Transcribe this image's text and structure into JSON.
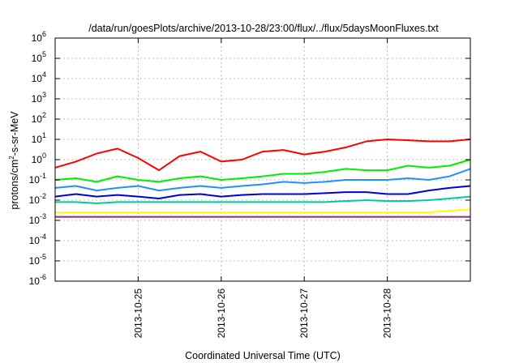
{
  "chart_data": {
    "type": "line",
    "title": "/data/run/goesPlots/archive/2013-10-28/23:00/flux/../flux/5daysMoonFluxes.txt",
    "xlabel": "Coordinated Universal Time (UTC)",
    "ylabel_parts": [
      "protons/cm",
      "2",
      "-s-sr-MeV"
    ],
    "yscale": "log",
    "ylim": [
      1e-06,
      1000000
    ],
    "xlim": [
      "2013-10-24 00:00",
      "2013-10-29 00:00"
    ],
    "x_ticks": [
      {
        "label": "2013-10-25",
        "value": "2013-10-25 00:00"
      },
      {
        "label": "2013-10-26",
        "value": "2013-10-26 00:00"
      },
      {
        "label": "2013-10-27",
        "value": "2013-10-27 00:00"
      },
      {
        "label": "2013-10-28",
        "value": "2013-10-28 00:00"
      }
    ],
    "y_ticks": [
      {
        "mantissa": "10",
        "exp": "-6",
        "value": 1e-06
      },
      {
        "mantissa": "10",
        "exp": "-5",
        "value": 1e-05
      },
      {
        "mantissa": "10",
        "exp": "-4",
        "value": 0.0001
      },
      {
        "mantissa": "10",
        "exp": "-3",
        "value": 0.001
      },
      {
        "mantissa": "10",
        "exp": "-2",
        "value": 0.01
      },
      {
        "mantissa": "10",
        "exp": "-1",
        "value": 0.1
      },
      {
        "mantissa": "10",
        "exp": "0",
        "value": 1
      },
      {
        "mantissa": "10",
        "exp": "1",
        "value": 10
      },
      {
        "mantissa": "10",
        "exp": "2",
        "value": 100
      },
      {
        "mantissa": "10",
        "exp": "3",
        "value": 1000
      },
      {
        "mantissa": "10",
        "exp": "4",
        "value": 10000
      },
      {
        "mantissa": "10",
        "exp": "5",
        "value": 100000
      },
      {
        "mantissa": "10",
        "exp": "6",
        "value": 1000000
      }
    ],
    "grid": true,
    "legend": "none",
    "series": [
      {
        "color": "#ff0000",
        "x": [
          "2013-10-24 00:00",
          "2013-10-24 06:00",
          "2013-10-24 12:00",
          "2013-10-24 18:00",
          "2013-10-25 00:00",
          "2013-10-25 06:00",
          "2013-10-25 12:00",
          "2013-10-25 18:00",
          "2013-10-26 00:00",
          "2013-10-26 06:00",
          "2013-10-26 12:00",
          "2013-10-26 18:00",
          "2013-10-27 00:00",
          "2013-10-27 06:00",
          "2013-10-27 12:00",
          "2013-10-27 18:00",
          "2013-10-28 00:00",
          "2013-10-28 06:00",
          "2013-10-28 12:00",
          "2013-10-28 18:00",
          "2013-10-29 00:00"
        ],
        "y": [
          0.4,
          0.8,
          2,
          3.5,
          1.2,
          0.3,
          1.5,
          2.5,
          0.8,
          1,
          2.5,
          3,
          1.8,
          2.5,
          4,
          8,
          10,
          9,
          8,
          8,
          10
        ]
      },
      {
        "color": "#00ee00",
        "x": [
          "2013-10-24 00:00",
          "2013-10-24 06:00",
          "2013-10-24 12:00",
          "2013-10-24 18:00",
          "2013-10-25 00:00",
          "2013-10-25 06:00",
          "2013-10-25 12:00",
          "2013-10-25 18:00",
          "2013-10-26 00:00",
          "2013-10-26 06:00",
          "2013-10-26 12:00",
          "2013-10-26 18:00",
          "2013-10-27 00:00",
          "2013-10-27 06:00",
          "2013-10-27 12:00",
          "2013-10-27 18:00",
          "2013-10-28 00:00",
          "2013-10-28 06:00",
          "2013-10-28 12:00",
          "2013-10-28 18:00",
          "2013-10-29 00:00"
        ],
        "y": [
          0.1,
          0.12,
          0.08,
          0.15,
          0.1,
          0.08,
          0.12,
          0.15,
          0.1,
          0.12,
          0.15,
          0.2,
          0.2,
          0.25,
          0.35,
          0.3,
          0.3,
          0.5,
          0.4,
          0.5,
          1
        ]
      },
      {
        "color": "#1e90ff",
        "x": [
          "2013-10-24 00:00",
          "2013-10-24 06:00",
          "2013-10-24 12:00",
          "2013-10-24 18:00",
          "2013-10-25 00:00",
          "2013-10-25 06:00",
          "2013-10-25 12:00",
          "2013-10-25 18:00",
          "2013-10-26 00:00",
          "2013-10-26 06:00",
          "2013-10-26 12:00",
          "2013-10-26 18:00",
          "2013-10-27 00:00",
          "2013-10-27 06:00",
          "2013-10-27 12:00",
          "2013-10-27 18:00",
          "2013-10-28 00:00",
          "2013-10-28 06:00",
          "2013-10-28 12:00",
          "2013-10-28 18:00",
          "2013-10-29 00:00"
        ],
        "y": [
          0.04,
          0.05,
          0.03,
          0.04,
          0.05,
          0.03,
          0.04,
          0.05,
          0.04,
          0.05,
          0.06,
          0.08,
          0.07,
          0.08,
          0.1,
          0.1,
          0.1,
          0.12,
          0.1,
          0.15,
          0.35
        ]
      },
      {
        "color": "#0000dd",
        "x": [
          "2013-10-24 00:00",
          "2013-10-24 06:00",
          "2013-10-24 12:00",
          "2013-10-24 18:00",
          "2013-10-25 00:00",
          "2013-10-25 06:00",
          "2013-10-25 12:00",
          "2013-10-25 18:00",
          "2013-10-26 00:00",
          "2013-10-26 06:00",
          "2013-10-26 12:00",
          "2013-10-26 18:00",
          "2013-10-27 00:00",
          "2013-10-27 06:00",
          "2013-10-27 12:00",
          "2013-10-27 18:00",
          "2013-10-28 00:00",
          "2013-10-28 06:00",
          "2013-10-28 12:00",
          "2013-10-28 18:00",
          "2013-10-29 00:00"
        ],
        "y": [
          0.015,
          0.02,
          0.015,
          0.018,
          0.015,
          0.012,
          0.018,
          0.02,
          0.015,
          0.018,
          0.02,
          0.02,
          0.02,
          0.022,
          0.025,
          0.025,
          0.02,
          0.02,
          0.03,
          0.04,
          0.05
        ]
      },
      {
        "color": "#00c8a0",
        "x": [
          "2013-10-24 00:00",
          "2013-10-24 06:00",
          "2013-10-24 12:00",
          "2013-10-24 18:00",
          "2013-10-25 00:00",
          "2013-10-25 06:00",
          "2013-10-25 12:00",
          "2013-10-25 18:00",
          "2013-10-26 00:00",
          "2013-10-26 06:00",
          "2013-10-26 12:00",
          "2013-10-26 18:00",
          "2013-10-27 00:00",
          "2013-10-27 06:00",
          "2013-10-27 12:00",
          "2013-10-27 18:00",
          "2013-10-28 00:00",
          "2013-10-28 06:00",
          "2013-10-28 12:00",
          "2013-10-28 18:00",
          "2013-10-29 00:00"
        ],
        "y": [
          0.008,
          0.008,
          0.007,
          0.008,
          0.008,
          0.008,
          0.008,
          0.008,
          0.008,
          0.008,
          0.008,
          0.008,
          0.008,
          0.008,
          0.009,
          0.01,
          0.009,
          0.009,
          0.01,
          0.012,
          0.015
        ]
      },
      {
        "color": "#ffff00",
        "x": [
          "2013-10-24 00:00",
          "2013-10-24 06:00",
          "2013-10-24 12:00",
          "2013-10-24 18:00",
          "2013-10-25 00:00",
          "2013-10-25 06:00",
          "2013-10-25 12:00",
          "2013-10-25 18:00",
          "2013-10-26 00:00",
          "2013-10-26 06:00",
          "2013-10-26 12:00",
          "2013-10-26 18:00",
          "2013-10-27 00:00",
          "2013-10-27 06:00",
          "2013-10-27 12:00",
          "2013-10-27 18:00",
          "2013-10-28 00:00",
          "2013-10-28 06:00",
          "2013-10-28 12:00",
          "2013-10-28 18:00",
          "2013-10-29 00:00"
        ],
        "y": [
          0.0025,
          0.0025,
          0.0025,
          0.0025,
          0.0025,
          0.0025,
          0.0025,
          0.0025,
          0.0025,
          0.0025,
          0.0025,
          0.0025,
          0.0025,
          0.0025,
          0.0025,
          0.0025,
          0.0025,
          0.0025,
          0.0025,
          0.003,
          0.0035
        ]
      },
      {
        "color": "#8b2a80",
        "x": [
          "2013-10-24 00:00",
          "2013-10-24 06:00",
          "2013-10-24 12:00",
          "2013-10-24 18:00",
          "2013-10-25 00:00",
          "2013-10-25 06:00",
          "2013-10-25 12:00",
          "2013-10-25 18:00",
          "2013-10-26 00:00",
          "2013-10-26 06:00",
          "2013-10-26 12:00",
          "2013-10-26 18:00",
          "2013-10-27 00:00",
          "2013-10-27 06:00",
          "2013-10-27 12:00",
          "2013-10-27 18:00",
          "2013-10-28 00:00",
          "2013-10-28 06:00",
          "2013-10-28 12:00",
          "2013-10-28 18:00",
          "2013-10-29 00:00"
        ],
        "y": [
          0.0015,
          0.0015,
          0.0015,
          0.0015,
          0.0015,
          0.0015,
          0.0015,
          0.0015,
          0.0015,
          0.0015,
          0.0015,
          0.0015,
          0.0015,
          0.0015,
          0.0015,
          0.0015,
          0.0015,
          0.0015,
          0.0015,
          0.0015,
          0.0015
        ]
      }
    ]
  }
}
